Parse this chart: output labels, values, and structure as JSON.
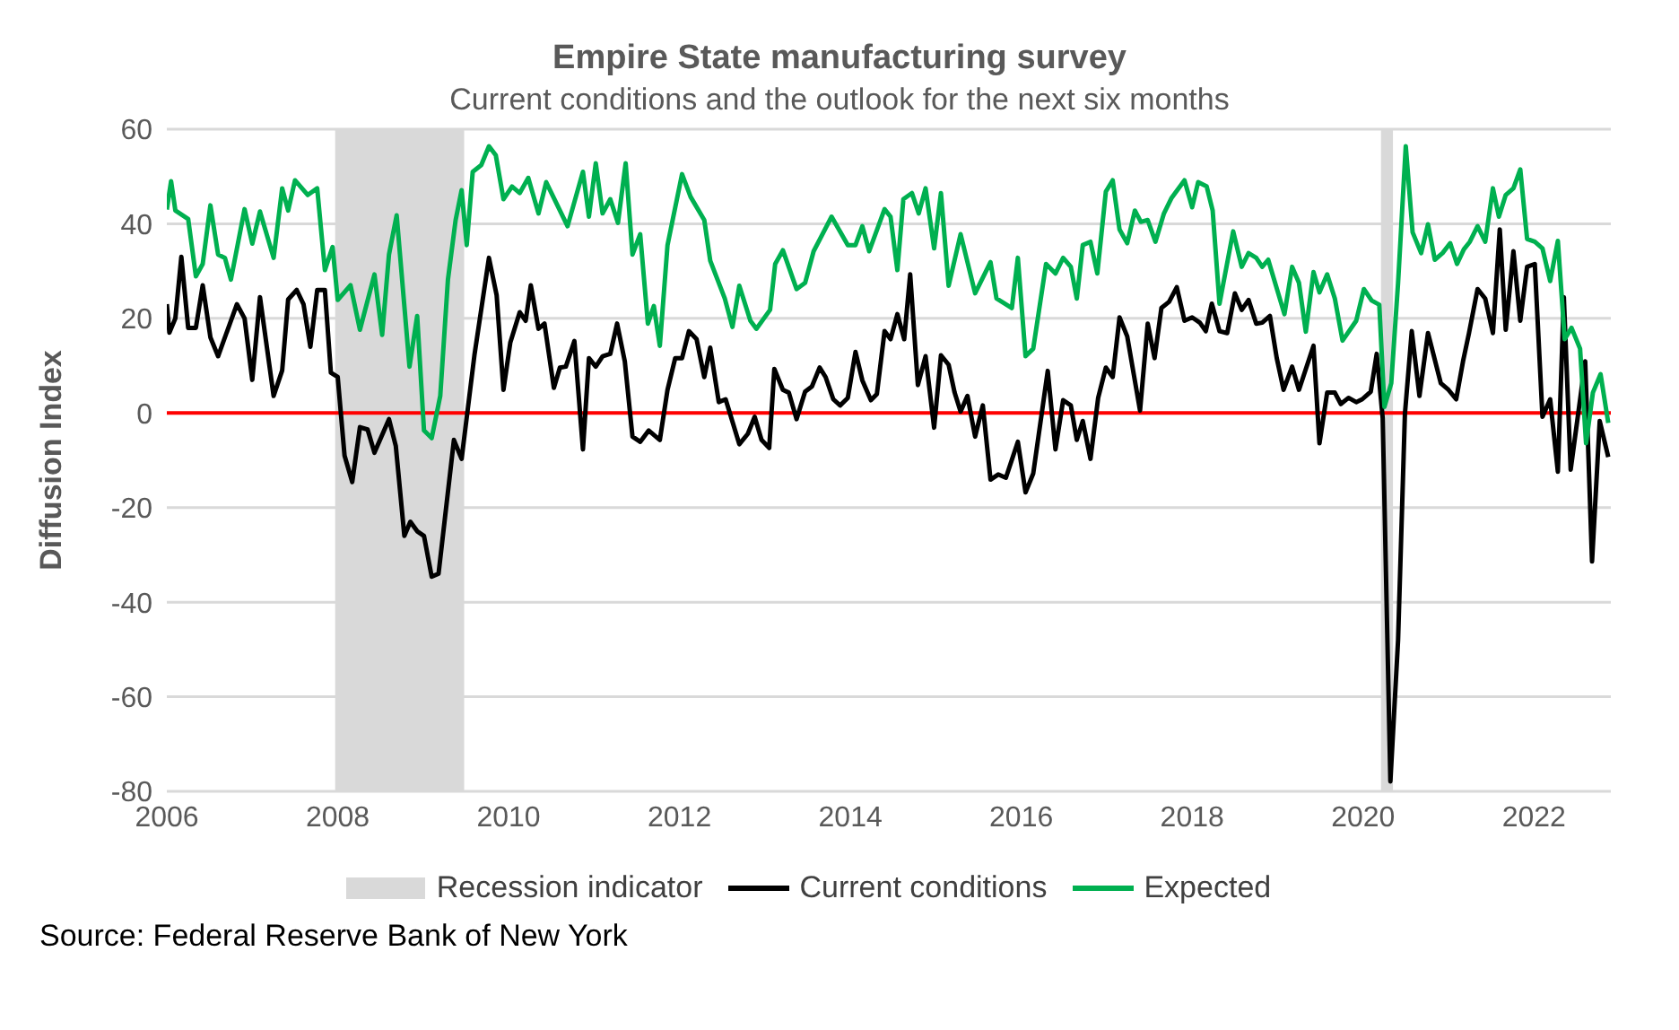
{
  "chart_data": {
    "type": "line",
    "title": "Empire State manufacturing survey",
    "subtitle": "Current conditions and the outlook for the next six months",
    "ylabel": "Diffusion Index",
    "xlim": [
      2006,
      2022.9
    ],
    "xticks": [
      2006,
      2008,
      2010,
      2012,
      2014,
      2016,
      2018,
      2020,
      2022
    ],
    "ylim": [
      -80,
      60
    ],
    "yticks": [
      -80,
      -60,
      -40,
      -20,
      0,
      20,
      40,
      60
    ],
    "grid": "y",
    "legend": "bottom",
    "bands": [
      {
        "axis": "x",
        "from": 2007.97,
        "to": 2009.48,
        "label": "Recession indicator",
        "color": "#d9d9d9"
      },
      {
        "axis": "x",
        "from": 2020.21,
        "to": 2020.35,
        "color": "#d9d9d9"
      }
    ],
    "ref_lines": [
      {
        "axis": "y",
        "value": 0,
        "color": "#ff0000"
      }
    ],
    "annotations": [
      "Source: Federal Reserve Bank of New York"
    ],
    "series": [
      {
        "name": "Current conditions",
        "color": "#000000",
        "type": "line",
        "x": [
          2006.0,
          2006.03,
          2006.1,
          2006.17,
          2006.25,
          2006.34,
          2006.42,
          2006.51,
          2006.6,
          2006.82,
          2006.91,
          2007.0,
          2007.09,
          2007.25,
          2007.35,
          2007.42,
          2007.52,
          2007.6,
          2007.68,
          2007.76,
          2007.85,
          2007.92,
          2008.0,
          2008.08,
          2008.17,
          2008.26,
          2008.35,
          2008.43,
          2008.6,
          2008.68,
          2008.78,
          2008.85,
          2008.93,
          2009.01,
          2009.1,
          2009.18,
          2009.36,
          2009.45,
          2009.6,
          2009.77,
          2009.86,
          2009.94,
          2010.02,
          2010.13,
          2010.2,
          2010.26,
          2010.35,
          2010.42,
          2010.53,
          2010.6,
          2010.67,
          2010.77,
          2010.87,
          2010.94,
          2011.02,
          2011.1,
          2011.19,
          2011.27,
          2011.36,
          2011.45,
          2011.54,
          2011.64,
          2011.77,
          2011.86,
          2011.95,
          2012.03,
          2012.11,
          2012.2,
          2012.29,
          2012.36,
          2012.46,
          2012.54,
          2012.7,
          2012.8,
          2012.88,
          2012.96,
          2013.05,
          2013.11,
          2013.21,
          2013.28,
          2013.37,
          2013.47,
          2013.55,
          2013.64,
          2013.71,
          2013.8,
          2013.88,
          2013.97,
          2014.06,
          2014.14,
          2014.24,
          2014.31,
          2014.4,
          2014.47,
          2014.55,
          2014.63,
          2014.7,
          2014.79,
          2014.88,
          2014.98,
          2015.06,
          2015.15,
          2015.22,
          2015.29,
          2015.37,
          2015.46,
          2015.55,
          2015.64,
          2015.73,
          2015.82,
          2015.96,
          2016.05,
          2016.14,
          2016.31,
          2016.4,
          2016.49,
          2016.58,
          2016.65,
          2016.72,
          2016.81,
          2016.9,
          2016.99,
          2017.07,
          2017.15,
          2017.24,
          2017.39,
          2017.48,
          2017.56,
          2017.64,
          2017.73,
          2017.82,
          2017.91,
          2018.0,
          2018.09,
          2018.16,
          2018.23,
          2018.32,
          2018.41,
          2018.5,
          2018.58,
          2018.66,
          2018.75,
          2018.82,
          2018.91,
          2018.99,
          2019.07,
          2019.17,
          2019.25,
          2019.42,
          2019.49,
          2019.58,
          2019.67,
          2019.74,
          2019.83,
          2019.92,
          2019.99,
          2020.09,
          2020.16,
          2020.23,
          2020.32,
          2020.41,
          2020.49,
          2020.57,
          2020.66,
          2020.76,
          2020.91,
          2021.0,
          2021.09,
          2021.17,
          2021.24,
          2021.34,
          2021.43,
          2021.52,
          2021.6,
          2021.67,
          2021.76,
          2021.84,
          2021.92,
          2022.01,
          2022.1,
          2022.19,
          2022.28,
          2022.35,
          2022.43,
          2022.6,
          2022.68,
          2022.77,
          2022.87
        ],
        "values": [
          23,
          17,
          20,
          33,
          18,
          18,
          27,
          16,
          12,
          23,
          20,
          7,
          24.5,
          3.6,
          9,
          24,
          26,
          23,
          14,
          26,
          26,
          8.5,
          7.6,
          -9,
          -14.6,
          -3,
          -3.5,
          -8.4,
          -1.3,
          -7,
          -26,
          -23,
          -25,
          -26,
          -34.6,
          -34,
          -5.7,
          -9.7,
          12.2,
          32.8,
          24.9,
          4.9,
          14.9,
          21.3,
          19.5,
          27,
          17.8,
          18.9,
          5.3,
          9.6,
          9.8,
          15.2,
          -7.7,
          11.6,
          9.8,
          12,
          12.5,
          18.9,
          10.9,
          -5,
          -6.1,
          -3.7,
          -5.7,
          4.9,
          11.6,
          11.6,
          17.3,
          15.6,
          7.6,
          13.8,
          2.3,
          2.9,
          -6.6,
          -4.4,
          -0.8,
          -5.7,
          -7.4,
          9.3,
          4.9,
          4.3,
          -1.3,
          4.5,
          5.6,
          9.6,
          7.6,
          2.9,
          1.6,
          3.2,
          12.9,
          6.9,
          2.7,
          4,
          17.3,
          15.6,
          20.9,
          15.6,
          29.3,
          5.9,
          12,
          -3.1,
          12.2,
          10.2,
          4.3,
          0.3,
          3.6,
          -5,
          1.6,
          -14.1,
          -13,
          -13.7,
          -6.1,
          -16.8,
          -12.8,
          8.9,
          -7.7,
          2.7,
          1.6,
          -5.7,
          -1.7,
          -9.7,
          3.2,
          9.6,
          7.6,
          20.2,
          16.2,
          0.5,
          18.9,
          11.6,
          22.2,
          23.5,
          26.6,
          19.5,
          20.2,
          19.1,
          17.3,
          23.1,
          17.3,
          16.9,
          25.3,
          21.8,
          23.9,
          18.9,
          19.1,
          20.5,
          11.6,
          4.9,
          9.8,
          4.9,
          14.2,
          -6.4,
          4.3,
          4.3,
          1.9,
          3.2,
          2.3,
          2.9,
          4.5,
          12.5,
          -1.1,
          -77.9,
          -48,
          -0.2,
          17.3,
          3.6,
          16.9,
          6.3,
          4.9,
          2.9,
          10.9,
          16.9,
          26.2,
          24.2,
          16.9,
          38.8,
          17.6,
          34.2,
          19.5,
          30.9,
          31.5,
          -0.8,
          2.9,
          -12.4,
          24.5,
          -12,
          10.9,
          -31.4,
          -1.7,
          -9.3
        ]
      },
      {
        "name": "Expected",
        "color": "#00b050",
        "type": "line",
        "x": [
          2006.0,
          2006.05,
          2006.1,
          2006.25,
          2006.34,
          2006.42,
          2006.51,
          2006.6,
          2006.68,
          2006.75,
          2006.91,
          2007.0,
          2007.09,
          2007.25,
          2007.35,
          2007.42,
          2007.5,
          2007.65,
          2007.76,
          2007.85,
          2007.94,
          2008.0,
          2008.15,
          2008.26,
          2008.43,
          2008.52,
          2008.6,
          2008.69,
          2008.84,
          2008.93,
          2009.01,
          2009.1,
          2009.2,
          2009.29,
          2009.38,
          2009.45,
          2009.51,
          2009.58,
          2009.68,
          2009.77,
          2009.85,
          2009.94,
          2010.04,
          2010.13,
          2010.23,
          2010.35,
          2010.44,
          2010.69,
          2010.87,
          2010.94,
          2011.02,
          2011.1,
          2011.19,
          2011.28,
          2011.37,
          2011.45,
          2011.54,
          2011.63,
          2011.7,
          2011.77,
          2011.86,
          2012.03,
          2012.13,
          2012.29,
          2012.36,
          2012.53,
          2012.62,
          2012.7,
          2012.83,
          2012.9,
          2013.06,
          2013.12,
          2013.21,
          2013.37,
          2013.47,
          2013.57,
          2013.78,
          2013.97,
          2014.06,
          2014.14,
          2014.22,
          2014.4,
          2014.47,
          2014.55,
          2014.62,
          2014.72,
          2014.8,
          2014.88,
          2014.98,
          2015.06,
          2015.15,
          2015.29,
          2015.46,
          2015.64,
          2015.71,
          2015.89,
          2015.96,
          2016.05,
          2016.14,
          2016.29,
          2016.4,
          2016.49,
          2016.58,
          2016.65,
          2016.72,
          2016.81,
          2016.89,
          2016.99,
          2017.07,
          2017.15,
          2017.24,
          2017.33,
          2017.4,
          2017.48,
          2017.57,
          2017.67,
          2017.76,
          2017.91,
          2018.0,
          2018.07,
          2018.17,
          2018.24,
          2018.32,
          2018.48,
          2018.58,
          2018.66,
          2018.75,
          2018.82,
          2018.89,
          2019.08,
          2019.17,
          2019.25,
          2019.33,
          2019.42,
          2019.49,
          2019.58,
          2019.67,
          2019.76,
          2019.92,
          2020.01,
          2020.1,
          2020.19,
          2020.25,
          2020.33,
          2020.41,
          2020.5,
          2020.58,
          2020.68,
          2020.76,
          2020.84,
          2020.93,
          2021.02,
          2021.1,
          2021.18,
          2021.25,
          2021.34,
          2021.43,
          2021.52,
          2021.59,
          2021.67,
          2021.76,
          2021.84,
          2021.92,
          2022.01,
          2022.1,
          2022.19,
          2022.28,
          2022.36,
          2022.44,
          2022.54,
          2022.61,
          2022.69,
          2022.78,
          2022.87
        ],
        "values": [
          43,
          49,
          42.8,
          41,
          28.9,
          31.5,
          43.9,
          33.5,
          32.8,
          28.2,
          43.1,
          35.8,
          42.6,
          32.8,
          47.5,
          42.8,
          49.2,
          46.1,
          47.5,
          30.2,
          35.1,
          23.9,
          27,
          17.6,
          29.3,
          16.5,
          33.5,
          41.8,
          9.8,
          20.5,
          -3.7,
          -5.3,
          3.6,
          28.2,
          40.8,
          47.1,
          35.5,
          51,
          52.4,
          56.4,
          54.5,
          45.2,
          47.9,
          46.5,
          49.7,
          42.2,
          48.8,
          39.5,
          51,
          41.5,
          52.8,
          42.2,
          45.2,
          40.2,
          52.8,
          33.5,
          37.8,
          18.9,
          22.6,
          14.2,
          35.5,
          50.5,
          45.7,
          40.8,
          32.2,
          24.2,
          18.2,
          26.9,
          19.5,
          17.8,
          21.8,
          31.5,
          34.4,
          26.2,
          27.5,
          34.2,
          41.5,
          35.5,
          35.5,
          39.5,
          34.2,
          43.1,
          41.5,
          30.2,
          45.2,
          46.5,
          42.2,
          47.5,
          34.8,
          46.5,
          26.9,
          37.8,
          25.3,
          31.9,
          24.2,
          22.2,
          32.8,
          12,
          13.6,
          31.5,
          29.5,
          32.8,
          30.9,
          24.2,
          35.5,
          36.2,
          29.5,
          46.8,
          49.2,
          38.8,
          35.9,
          42.8,
          40.4,
          40.8,
          36.2,
          42.2,
          45.5,
          49.2,
          43.5,
          48.8,
          47.9,
          42.8,
          23.1,
          38.4,
          30.9,
          33.8,
          32.8,
          30.9,
          32.4,
          20.9,
          30.9,
          27.5,
          17.2,
          29.8,
          25.5,
          29.3,
          24.2,
          15.3,
          19.5,
          26.2,
          23.8,
          22.9,
          1.3,
          6.3,
          27.5,
          56.4,
          38.2,
          33.8,
          39.9,
          32.4,
          33.8,
          35.9,
          31.5,
          34.6,
          36.2,
          39.5,
          36.2,
          47.5,
          41.5,
          46.1,
          47.5,
          51.5,
          36.8,
          36.2,
          34.8,
          27.9,
          36.4,
          15.6,
          18,
          13.6,
          -6.4,
          4.3,
          8.2,
          -2.1
        ]
      }
    ]
  }
}
